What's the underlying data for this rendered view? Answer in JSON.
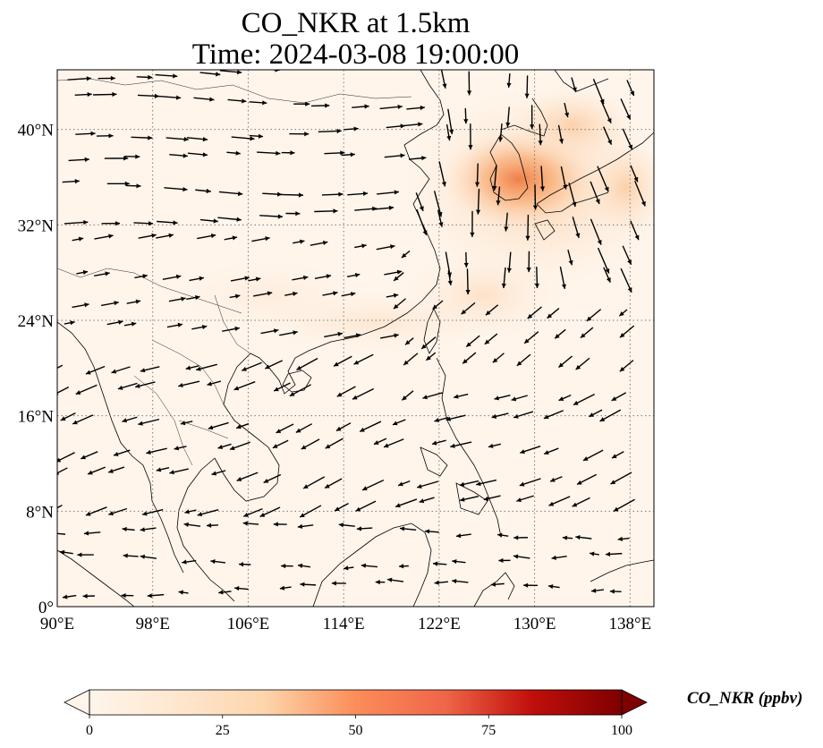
{
  "title": {
    "line1": "CO_NKR at 1.5km",
    "line2": "Time: 2024-03-08 19:00:00"
  },
  "map": {
    "lon_range": [
      90,
      140
    ],
    "lat_range": [
      0,
      45
    ],
    "lon_ticks": [
      {
        "value": 90,
        "label": "90°E"
      },
      {
        "value": 98,
        "label": "98°E"
      },
      {
        "value": 106,
        "label": "106°E"
      },
      {
        "value": 114,
        "label": "114°E"
      },
      {
        "value": 122,
        "label": "122°E"
      },
      {
        "value": 130,
        "label": "130°E"
      },
      {
        "value": 138,
        "label": "138°E"
      }
    ],
    "lat_ticks": [
      {
        "value": 0,
        "label": "0°"
      },
      {
        "value": 8,
        "label": "8°N"
      },
      {
        "value": 16,
        "label": "16°N"
      },
      {
        "value": 24,
        "label": "24°N"
      },
      {
        "value": 32,
        "label": "32°N"
      },
      {
        "value": 40,
        "label": "40°N"
      }
    ],
    "gridlines": "dotted",
    "background_color": "#fff5eb",
    "plume_color": "#f08a4b",
    "coastline_color": "#000000",
    "vector_field": "wind-arrows"
  },
  "colorbar": {
    "label": "CO_NKR (ppbv)",
    "range": [
      0,
      100
    ],
    "extend": "both",
    "colormap": "OrRd",
    "colors": [
      "#fff5eb",
      "#fdd5ab",
      "#fdb274",
      "#f3743e",
      "#dd3c1c",
      "#a60f0b",
      "#67000d"
    ],
    "ticks": [
      {
        "value": 0,
        "label": "0"
      },
      {
        "value": 25,
        "label": "25"
      },
      {
        "value": 50,
        "label": "50"
      },
      {
        "value": 75,
        "label": "75"
      },
      {
        "value": 100,
        "label": "100"
      }
    ]
  }
}
